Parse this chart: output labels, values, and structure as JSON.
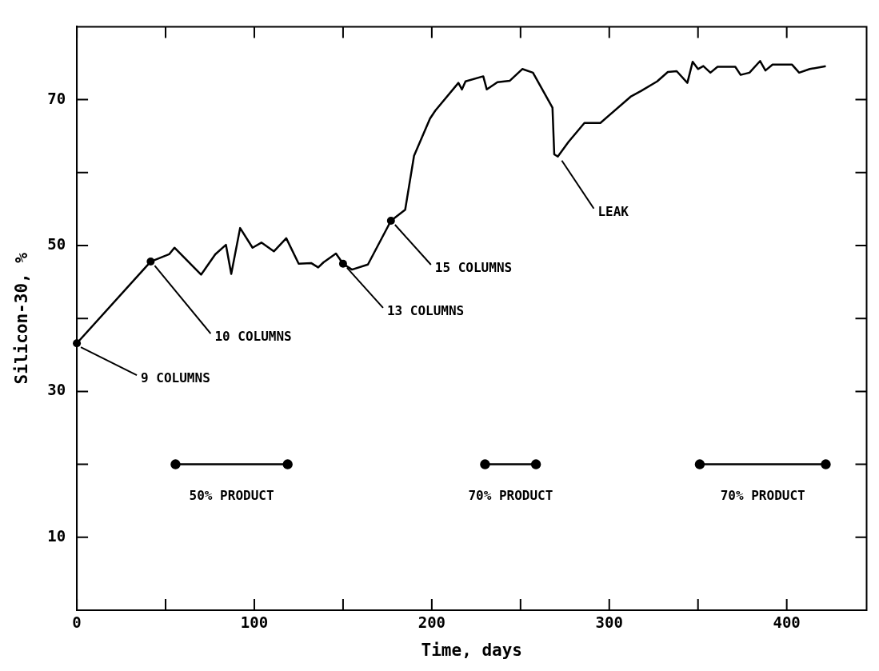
{
  "chart_data": {
    "type": "line",
    "xlabel": "Time, days",
    "ylabel": "Silicon-30, %",
    "xlim": [
      0,
      445
    ],
    "ylim": [
      0,
      80
    ],
    "xticks": [
      0,
      {
        "value": 50,
        "label": null
      },
      100,
      {
        "value": 150,
        "label": null
      },
      200,
      {
        "value": 250,
        "label": null
      },
      300,
      {
        "value": 350,
        "label": null
      },
      400
    ],
    "yticks": [
      10,
      {
        "value": 20,
        "label": null
      },
      30,
      {
        "value": 40,
        "label": null
      },
      50,
      {
        "value": 60,
        "label": null
      },
      70
    ],
    "grid": false,
    "legend": false,
    "line_style": "solid",
    "series": [
      {
        "color": "#000000",
        "marker": "none",
        "x": [
          0,
          41.6,
          52,
          55,
          70,
          78,
          84,
          87,
          92,
          99,
          104,
          111,
          118,
          125,
          132,
          136,
          139,
          146,
          150,
          155,
          164,
          177,
          185,
          190,
          199,
          202,
          215,
          217,
          219,
          229,
          231,
          237,
          244,
          251,
          257,
          268,
          269,
          271,
          277,
          286,
          295,
          312,
          318,
          327,
          333,
          338,
          344,
          347,
          350,
          353,
          357,
          361,
          371,
          374,
          379,
          385,
          388,
          392,
          403,
          407,
          413,
          422
        ],
        "values": [
          36.6,
          47.8,
          48.8,
          49.7,
          46.0,
          48.8,
          50.1,
          46.1,
          52.4,
          49.7,
          50.4,
          49.2,
          51.0,
          47.5,
          47.6,
          47.0,
          47.7,
          48.9,
          47.5,
          46.7,
          47.4,
          53.4,
          54.9,
          62.3,
          67.4,
          68.5,
          72.3,
          71.4,
          72.5,
          73.2,
          71.4,
          72.4,
          72.6,
          74.2,
          73.7,
          68.9,
          62.5,
          62.2,
          64.2,
          66.8,
          66.8,
          70.4,
          71.2,
          72.5,
          73.8,
          73.9,
          72.3,
          75.2,
          74.2,
          74.6,
          73.7,
          74.5,
          74.5,
          73.4,
          73.7,
          75.3,
          74.0,
          74.8,
          74.8,
          73.7,
          74.2,
          74.6
        ]
      },
      {
        "color": "#000000",
        "marker": "circle",
        "x": [
          55.6,
          118.8
        ],
        "values": [
          20,
          20
        ]
      },
      {
        "color": "#000000",
        "marker": "circle",
        "x": [
          230,
          258.7
        ],
        "values": [
          20,
          20
        ]
      },
      {
        "color": "#000000",
        "marker": "circle",
        "x": [
          351,
          422
        ],
        "values": [
          20,
          20
        ]
      }
    ],
    "annotations": [
      {
        "text": "9 COLUMNS",
        "x": 0,
        "y": 36.6
      },
      {
        "text": "10 COLUMNS",
        "x": 41.6,
        "y": 47.8
      },
      {
        "text": "13 COLUMNS",
        "x": 150,
        "y": 47.5
      },
      {
        "text": "15 COLUMNS",
        "x": 177,
        "y": 53.4
      },
      {
        "text": "LEAK",
        "x": 271,
        "y": 62.2
      },
      {
        "text": "50% PRODUCT",
        "x": 87.2,
        "y": 20
      },
      {
        "text": "70% PRODUCT",
        "x": 244.4,
        "y": 20
      },
      {
        "text": "70% PRODUCT",
        "x": 386.5,
        "y": 20
      }
    ]
  }
}
